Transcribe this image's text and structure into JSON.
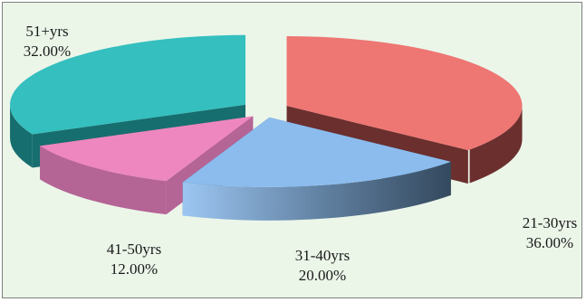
{
  "chart_data": {
    "type": "pie",
    "style": "3d-exploded",
    "title": "",
    "slices": [
      {
        "label": "21-30yrs",
        "value": 36.0,
        "value_text": "36.00%",
        "color": "#ee7673",
        "side_color": "#6b2f2e"
      },
      {
        "label": "31-40yrs",
        "value": 20.0,
        "value_text": "20.00%",
        "color": "#8cbcee",
        "side_color": "#3d5670"
      },
      {
        "label": "41-50yrs",
        "value": 12.0,
        "value_text": "12.00%",
        "color": "#ee87bf",
        "side_color": "#b56496"
      },
      {
        "label": "51+yrs",
        "value": 32.0,
        "value_text": "32.00%",
        "color": "#35bfbf",
        "side_color": "#176e6e"
      }
    ]
  },
  "background": "#ebf6e9"
}
